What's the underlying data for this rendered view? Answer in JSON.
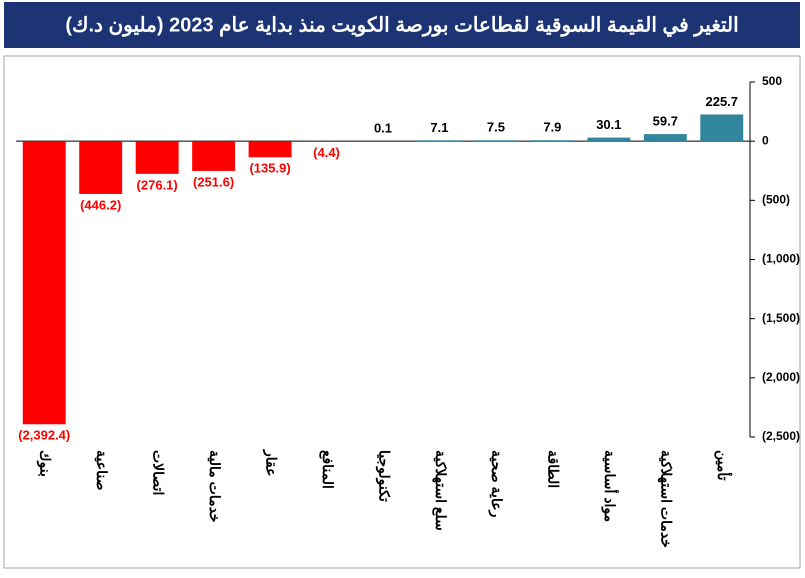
{
  "chart_data": {
    "type": "bar",
    "title": "التغير في القيمة السوقية لقطاعات بورصة الكويت منذ بداية عام 2023 (مليون د.ك)",
    "categories": [
      "بنوك",
      "صناعية",
      "اتصالات",
      "خدمات مالية",
      "عقار",
      "المنافع",
      "تكنولوجيا",
      "سلع استهلاكية",
      "رعاية صحية",
      "الطاقة",
      "مواد أساسية",
      "خدمات استهلاكية",
      "تأمين"
    ],
    "values": [
      -2392.4,
      -446.2,
      -276.1,
      -251.6,
      -135.9,
      -4.4,
      0.1,
      7.1,
      7.5,
      7.9,
      30.1,
      59.7,
      225.7
    ],
    "value_labels": [
      "(2,392.4)",
      "(446.2)",
      "(276.1)",
      "(251.6)",
      "(135.9)",
      "(4.4)",
      "0.1",
      "7.1",
      "7.5",
      "7.9",
      "30.1",
      "59.7",
      "225.7"
    ],
    "color_negative": "#ff0000",
    "color_positive": "#31859c",
    "ylim": [
      -2500,
      500
    ],
    "yticks": [
      500,
      0,
      {
        "value": -500,
        "label": "(500)"
      },
      {
        "value": -1000,
        "label": "(1,000)"
      },
      {
        "value": -1500,
        "label": "(1,500)"
      },
      {
        "value": -2000,
        "label": "(2,000)"
      },
      {
        "value": -2500,
        "label": "(2,500)"
      }
    ],
    "y_axis_side": "right",
    "grid": false
  }
}
